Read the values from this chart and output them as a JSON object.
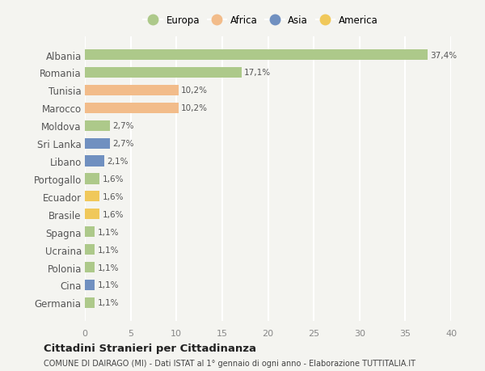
{
  "countries": [
    "Albania",
    "Romania",
    "Tunisia",
    "Marocco",
    "Moldova",
    "Sri Lanka",
    "Libano",
    "Portogallo",
    "Ecuador",
    "Brasile",
    "Spagna",
    "Ucraina",
    "Polonia",
    "Cina",
    "Germania"
  ],
  "values": [
    37.4,
    17.1,
    10.2,
    10.2,
    2.7,
    2.7,
    2.1,
    1.6,
    1.6,
    1.6,
    1.1,
    1.1,
    1.1,
    1.1,
    1.1
  ],
  "labels": [
    "37,4%",
    "17,1%",
    "10,2%",
    "10,2%",
    "2,7%",
    "2,7%",
    "2,1%",
    "1,6%",
    "1,6%",
    "1,6%",
    "1,1%",
    "1,1%",
    "1,1%",
    "1,1%",
    "1,1%"
  ],
  "continents": [
    "Europa",
    "Europa",
    "Africa",
    "Africa",
    "Europa",
    "Asia",
    "Asia",
    "Europa",
    "America",
    "America",
    "Europa",
    "Europa",
    "Europa",
    "Asia",
    "Europa"
  ],
  "continent_colors": {
    "Europa": "#adc98a",
    "Africa": "#f2bc8a",
    "Asia": "#7090c0",
    "America": "#f0c85a"
  },
  "legend_order": [
    "Europa",
    "Africa",
    "Asia",
    "America"
  ],
  "title": "Cittadini Stranieri per Cittadinanza",
  "subtitle": "COMUNE DI DAIRAGO (MI) - Dati ISTAT al 1° gennaio di ogni anno - Elaborazione TUTTITALIA.IT",
  "xlim": [
    0,
    40
  ],
  "xticks": [
    0,
    5,
    10,
    15,
    20,
    25,
    30,
    35,
    40
  ],
  "background_color": "#f4f4f0",
  "plot_bg_color": "#f4f4f0",
  "grid_color": "#ffffff"
}
